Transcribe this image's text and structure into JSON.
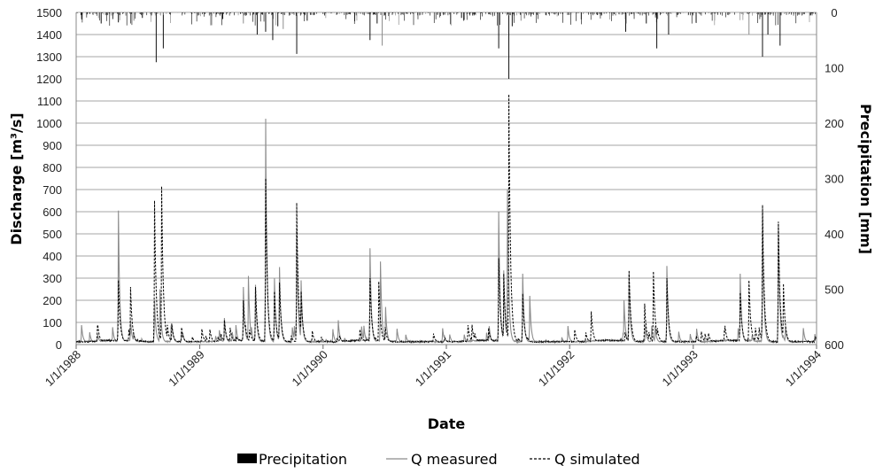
{
  "chart_data": {
    "type": "line",
    "xlabel": "Date",
    "ylabel": "Discharge [m³/s]",
    "y2label": "Precipitation [mm]",
    "ylim": [
      0,
      1500
    ],
    "y2lim": [
      0,
      600
    ],
    "y2_inverted": true,
    "grid": true,
    "legend_position": "bottom",
    "x_ticks": [
      "1/1/1988",
      "1/1/1989",
      "1/1/1990",
      "1/1/1991",
      "1/1/1992",
      "1/1/1993",
      "1/1/1994"
    ],
    "y_ticks": [
      0,
      100,
      200,
      300,
      400,
      500,
      600,
      700,
      800,
      900,
      1000,
      1100,
      1200,
      1300,
      1400,
      1500
    ],
    "y2_ticks": [
      0,
      100,
      200,
      300,
      400,
      500,
      600
    ],
    "baseflow": 10,
    "series": [
      {
        "name": "Q measured",
        "axis": "left",
        "style": "solid",
        "color": "#8c8c8c",
        "peaks": [
          [
            "1988-05-05",
            605
          ],
          [
            "1988-06-10",
            110
          ],
          [
            "1988-08-20",
            200
          ],
          [
            "1988-09-05",
            250
          ],
          [
            "1988-10-10",
            80
          ],
          [
            "1989-03-15",
            120
          ],
          [
            "1989-05-10",
            260
          ],
          [
            "1989-05-25",
            310
          ],
          [
            "1989-06-15",
            270
          ],
          [
            "1989-07-15",
            1020
          ],
          [
            "1989-08-10",
            300
          ],
          [
            "1989-08-25",
            350
          ],
          [
            "1989-10-15",
            520
          ],
          [
            "1989-10-28",
            290
          ],
          [
            "1990-02-15",
            110
          ],
          [
            "1990-05-20",
            435
          ],
          [
            "1990-06-20",
            375
          ],
          [
            "1990-07-05",
            170
          ],
          [
            "1991-06-05",
            600
          ],
          [
            "1991-06-20",
            335
          ],
          [
            "1991-07-01",
            700
          ],
          [
            "1991-08-15",
            320
          ],
          [
            "1991-09-05",
            220
          ],
          [
            "1992-06-10",
            200
          ],
          [
            "1992-06-25",
            320
          ],
          [
            "1992-10-15",
            355
          ],
          [
            "1993-05-20",
            320
          ],
          [
            "1993-07-25",
            600
          ],
          [
            "1993-09-10",
            545
          ]
        ]
      },
      {
        "name": "Q simulated",
        "axis": "left",
        "style": "dashed",
        "color": "#000000",
        "peaks": [
          [
            "1988-05-05",
            290
          ],
          [
            "1988-06-10",
            260
          ],
          [
            "1988-08-20",
            650
          ],
          [
            "1988-09-10",
            715
          ],
          [
            "1988-10-10",
            95
          ],
          [
            "1989-03-15",
            110
          ],
          [
            "1989-05-10",
            200
          ],
          [
            "1989-06-15",
            260
          ],
          [
            "1989-07-15",
            750
          ],
          [
            "1989-08-10",
            240
          ],
          [
            "1989-08-25",
            280
          ],
          [
            "1989-10-15",
            640
          ],
          [
            "1989-10-28",
            240
          ],
          [
            "1990-05-20",
            300
          ],
          [
            "1990-06-15",
            285
          ],
          [
            "1991-06-05",
            390
          ],
          [
            "1991-06-20",
            320
          ],
          [
            "1991-07-05",
            1130
          ],
          [
            "1991-08-15",
            230
          ],
          [
            "1992-03-05",
            150
          ],
          [
            "1992-06-25",
            335
          ],
          [
            "1992-08-10",
            185
          ],
          [
            "1992-09-05",
            330
          ],
          [
            "1992-10-15",
            300
          ],
          [
            "1993-05-20",
            235
          ],
          [
            "1993-06-15",
            290
          ],
          [
            "1993-07-25",
            630
          ],
          [
            "1993-09-10",
            555
          ],
          [
            "1993-09-25",
            275
          ]
        ]
      },
      {
        "name": "Precipitation",
        "axis": "right",
        "style": "bar",
        "color": "#000000",
        "peaks": [
          [
            "1988-03-15",
            20
          ],
          [
            "1988-05-05",
            18
          ],
          [
            "1988-06-20",
            15
          ],
          [
            "1988-07-15",
            10
          ],
          [
            "1988-08-25",
            90
          ],
          [
            "1988-09-15",
            65
          ],
          [
            "1989-03-10",
            12
          ],
          [
            "1989-05-10",
            20
          ],
          [
            "1989-06-20",
            40
          ],
          [
            "1989-07-15",
            35
          ],
          [
            "1989-08-05",
            50
          ],
          [
            "1989-08-20",
            25
          ],
          [
            "1989-09-05",
            30
          ],
          [
            "1989-10-15",
            75
          ],
          [
            "1989-11-15",
            15
          ],
          [
            "1990-05-20",
            50
          ],
          [
            "1990-06-10",
            20
          ],
          [
            "1990-06-25",
            60
          ],
          [
            "1991-02-15",
            10
          ],
          [
            "1991-06-05",
            65
          ],
          [
            "1991-07-05",
            120
          ],
          [
            "1991-07-15",
            25
          ],
          [
            "1991-08-10",
            15
          ],
          [
            "1992-06-15",
            35
          ],
          [
            "1992-08-15",
            20
          ],
          [
            "1992-09-15",
            65
          ],
          [
            "1992-10-20",
            40
          ],
          [
            "1993-06-15",
            40
          ],
          [
            "1993-07-25",
            80
          ],
          [
            "1993-08-10",
            40
          ],
          [
            "1993-09-15",
            60
          ]
        ]
      }
    ]
  }
}
